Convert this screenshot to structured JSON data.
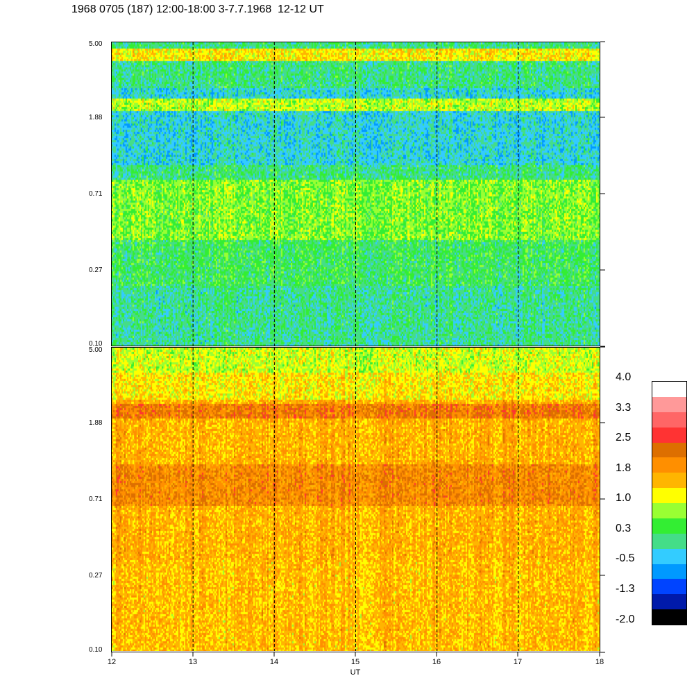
{
  "title": "1968 0705 (187) 12:00-18:00 3-7.7.1968  12-12 UT",
  "chart_data": [
    {
      "type": "heatmap",
      "panel": "top",
      "xlabel": "UT",
      "x_range": [
        12,
        18
      ],
      "x_ticks": [
        "12",
        "13",
        "14",
        "15",
        "16",
        "17",
        "18"
      ],
      "y_scale": "log",
      "y_range": [
        0.1,
        5.0
      ],
      "y_ticks": [
        "5.00",
        "1.88",
        "0.71",
        "0.27",
        "0.10"
      ],
      "vertical_dashed_lines_at": [
        13,
        14,
        15,
        16,
        17
      ],
      "dominant_levels": "green to cyan, yellow bands near 4.5 and 2.3, blue streaks near 1.5-2.5"
    },
    {
      "type": "heatmap",
      "panel": "bottom",
      "xlabel": "UT",
      "x_range": [
        12,
        18
      ],
      "x_ticks": [
        "12",
        "13",
        "14",
        "15",
        "16",
        "17",
        "18"
      ],
      "y_scale": "log",
      "y_range": [
        0.1,
        5.0
      ],
      "y_ticks": [
        "5.00",
        "1.88",
        "0.71",
        "0.27",
        "0.10"
      ],
      "vertical_dashed_lines_at": [
        13,
        14,
        15,
        16,
        17
      ],
      "dominant_levels": "yellow to orange, dark orange band near 2.2 and 0.9"
    }
  ],
  "colorbar": {
    "labels": [
      "4.0",
      "3.3",
      "2.5",
      "1.8",
      "1.0",
      "0.3",
      "-0.5",
      "-1.3",
      "-2.0"
    ],
    "colors": [
      "#ffffff",
      "#ff9999",
      "#ff6666",
      "#ff3333",
      "#dd6f00",
      "#ff8f00",
      "#ffb500",
      "#ffff00",
      "#99ff33",
      "#33ee33",
      "#44dd88",
      "#33ccff",
      "#0099ff",
      "#0044ff",
      "#001aaa",
      "#000000"
    ]
  }
}
